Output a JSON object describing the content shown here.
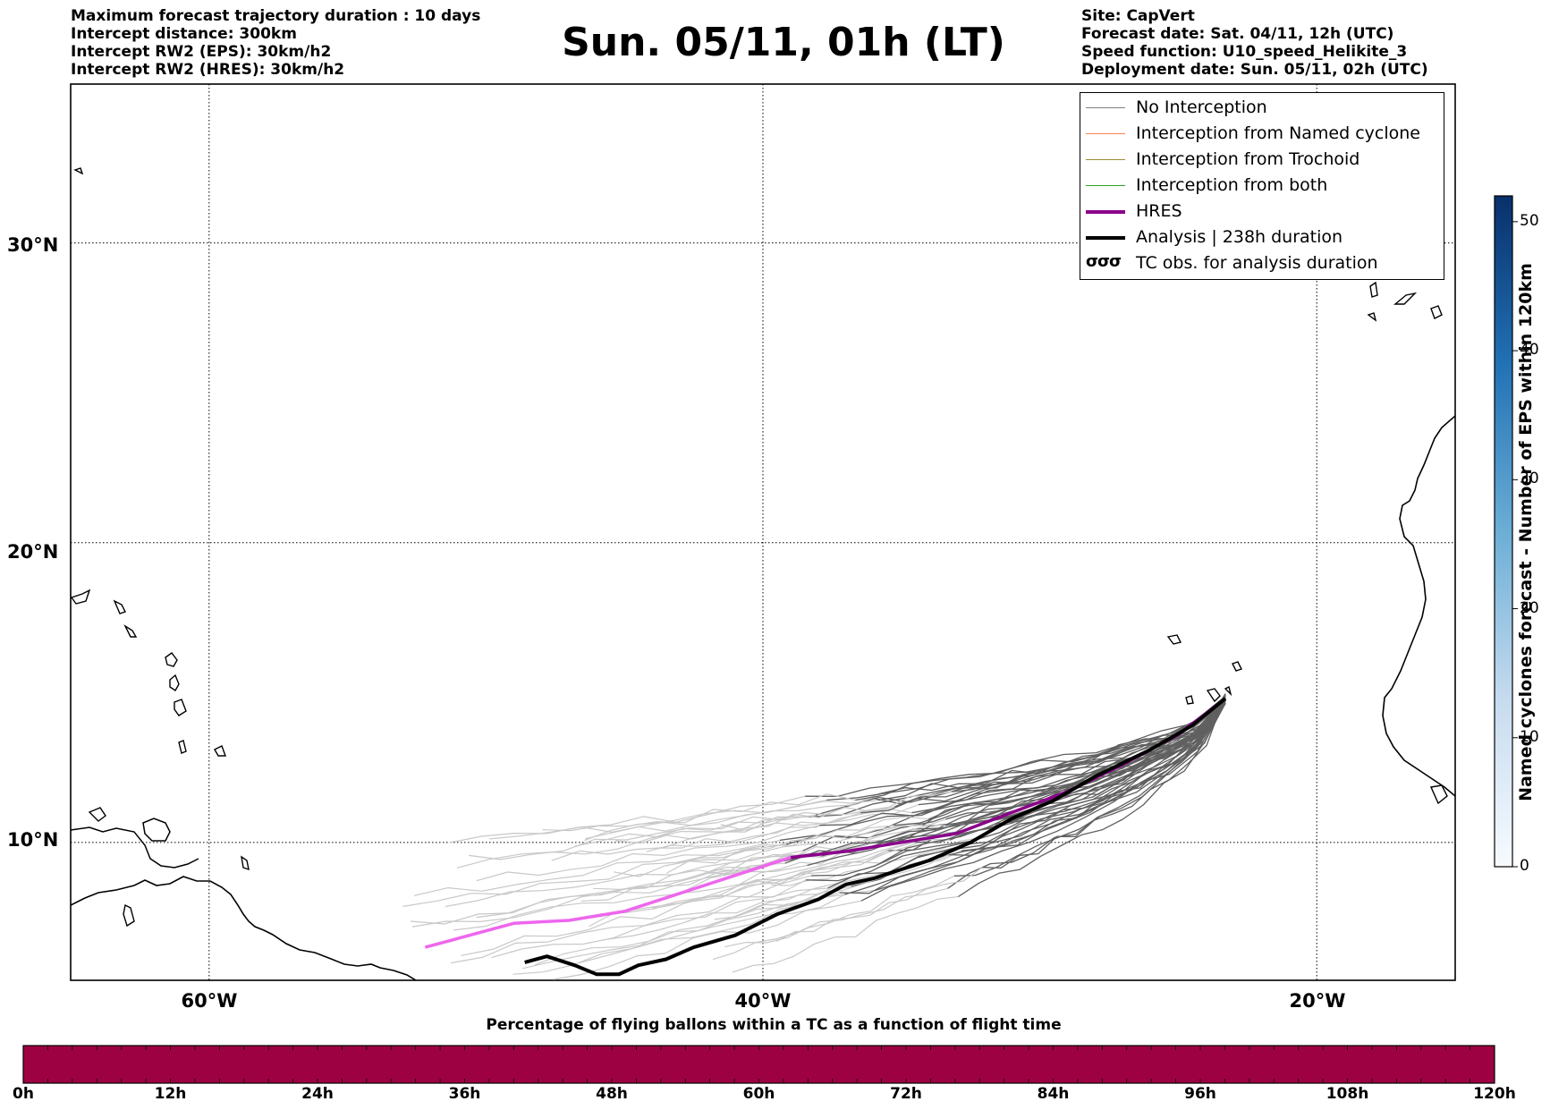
{
  "header": {
    "left_lines": [
      "Maximum forecast trajectory duration : 10 days",
      "Intercept distance: 300km",
      "Intercept RW2 (EPS):  30km/h2",
      "Intercept RW2 (HRES): 30km/h2"
    ],
    "right_lines": [
      "Site: CapVert",
      "Forecast date: Sat. 04/11, 12h (UTC)",
      "Speed function: U10_speed_Helikite_3",
      "Deployment date: Sun. 05/11, 02h (UTC)"
    ],
    "title": "Sun. 05/11, 01h (LT)"
  },
  "map": {
    "lon_range": [
      -65,
      -15
    ],
    "lat_range": [
      5.4,
      35.3
    ],
    "lat_labels": [
      "30°N",
      "20°N",
      "10°N"
    ],
    "lon_labels": [
      "60°W",
      "40°W",
      "20°W"
    ],
    "gridlines": "dotted",
    "colors": {
      "no_interception": "#808080",
      "named_cyclone": "#ff7f50",
      "trochoid": "#9c8a3a",
      "both": "#2ca02c",
      "hres": "#8b008b",
      "hres_faded": "#ee66ee",
      "analysis": "#000000",
      "eps_early": "#c8c8c8",
      "eps_late": "#606060"
    }
  },
  "legend": {
    "items": [
      {
        "label": "No Interception",
        "style": "line-gray"
      },
      {
        "label": "Interception from Named cyclone",
        "style": "line-coral"
      },
      {
        "label": "Interception from Trochoid",
        "style": "line-olive"
      },
      {
        "label": "Interception from both",
        "style": "line-green"
      },
      {
        "label": "HRES",
        "style": "line-purple-thick"
      },
      {
        "label": "Analysis | 238h duration",
        "style": "line-black-thick"
      },
      {
        "label": "TC obs. for analysis duration",
        "style": "cyclone-symbols"
      }
    ]
  },
  "right_colorbar": {
    "label": "Named cyclones forecast - Number of EPS within 120km",
    "range": [
      0,
      52
    ],
    "ticks": [
      "0",
      "10",
      "20",
      "30",
      "40",
      "50"
    ],
    "colormap": "Blues"
  },
  "bottom_colorbar": {
    "title": "Percentage of flying ballons within a TC as a function of flight time",
    "ticks": [
      "0h",
      "12h",
      "24h",
      "36h",
      "48h",
      "60h",
      "72h",
      "84h",
      "96h",
      "108h",
      "120h"
    ],
    "fill_color": "#9e0142"
  }
}
